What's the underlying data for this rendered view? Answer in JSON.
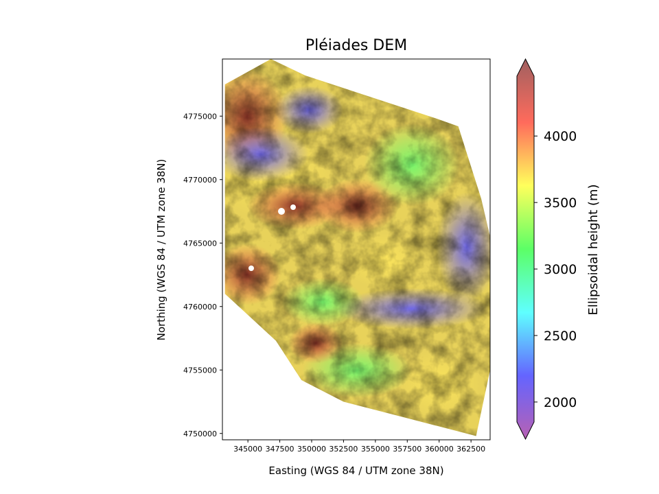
{
  "chart_data": {
    "type": "heatmap",
    "title": "Pléiades DEM",
    "xlabel": "Easting (WGS 84 / UTM zone 38N)",
    "ylabel": "Northing (WGS 84 / UTM zone 38N)",
    "x_ticks": [
      "345000",
      "347500",
      "350000",
      "352500",
      "355000",
      "357500",
      "360000",
      "362500"
    ],
    "y_ticks": [
      "4750000",
      "4755000",
      "4760000",
      "4765000",
      "4770000",
      "4775000"
    ],
    "xlim": [
      343000,
      364000
    ],
    "ylim": [
      4749500,
      4779500
    ],
    "colorbar": {
      "label": "Ellipsoidal height (m)",
      "ticks": [
        "2000",
        "2500",
        "3000",
        "3500",
        "4000"
      ],
      "range": [
        1850,
        4450
      ],
      "extend": "both",
      "colormap": [
        "#b861b3",
        "#6464ff",
        "#5fffff",
        "#5cff66",
        "#ffff5c",
        "#ff6b5c",
        "#a06060"
      ]
    },
    "footprint": [
      [
        343200,
        4777500
      ],
      [
        346800,
        4779500
      ],
      [
        349500,
        4778200
      ],
      [
        359800,
        4774800
      ],
      [
        361500,
        4774200
      ],
      [
        363300,
        4768500
      ],
      [
        364000,
        4765500
      ],
      [
        364000,
        4755000
      ],
      [
        362900,
        4749800
      ],
      [
        357500,
        4751200
      ],
      [
        352500,
        4752500
      ],
      [
        349200,
        4754200
      ],
      [
        347200,
        4757300
      ],
      [
        343200,
        4761000
      ],
      [
        343200,
        4770000
      ]
    ]
  }
}
